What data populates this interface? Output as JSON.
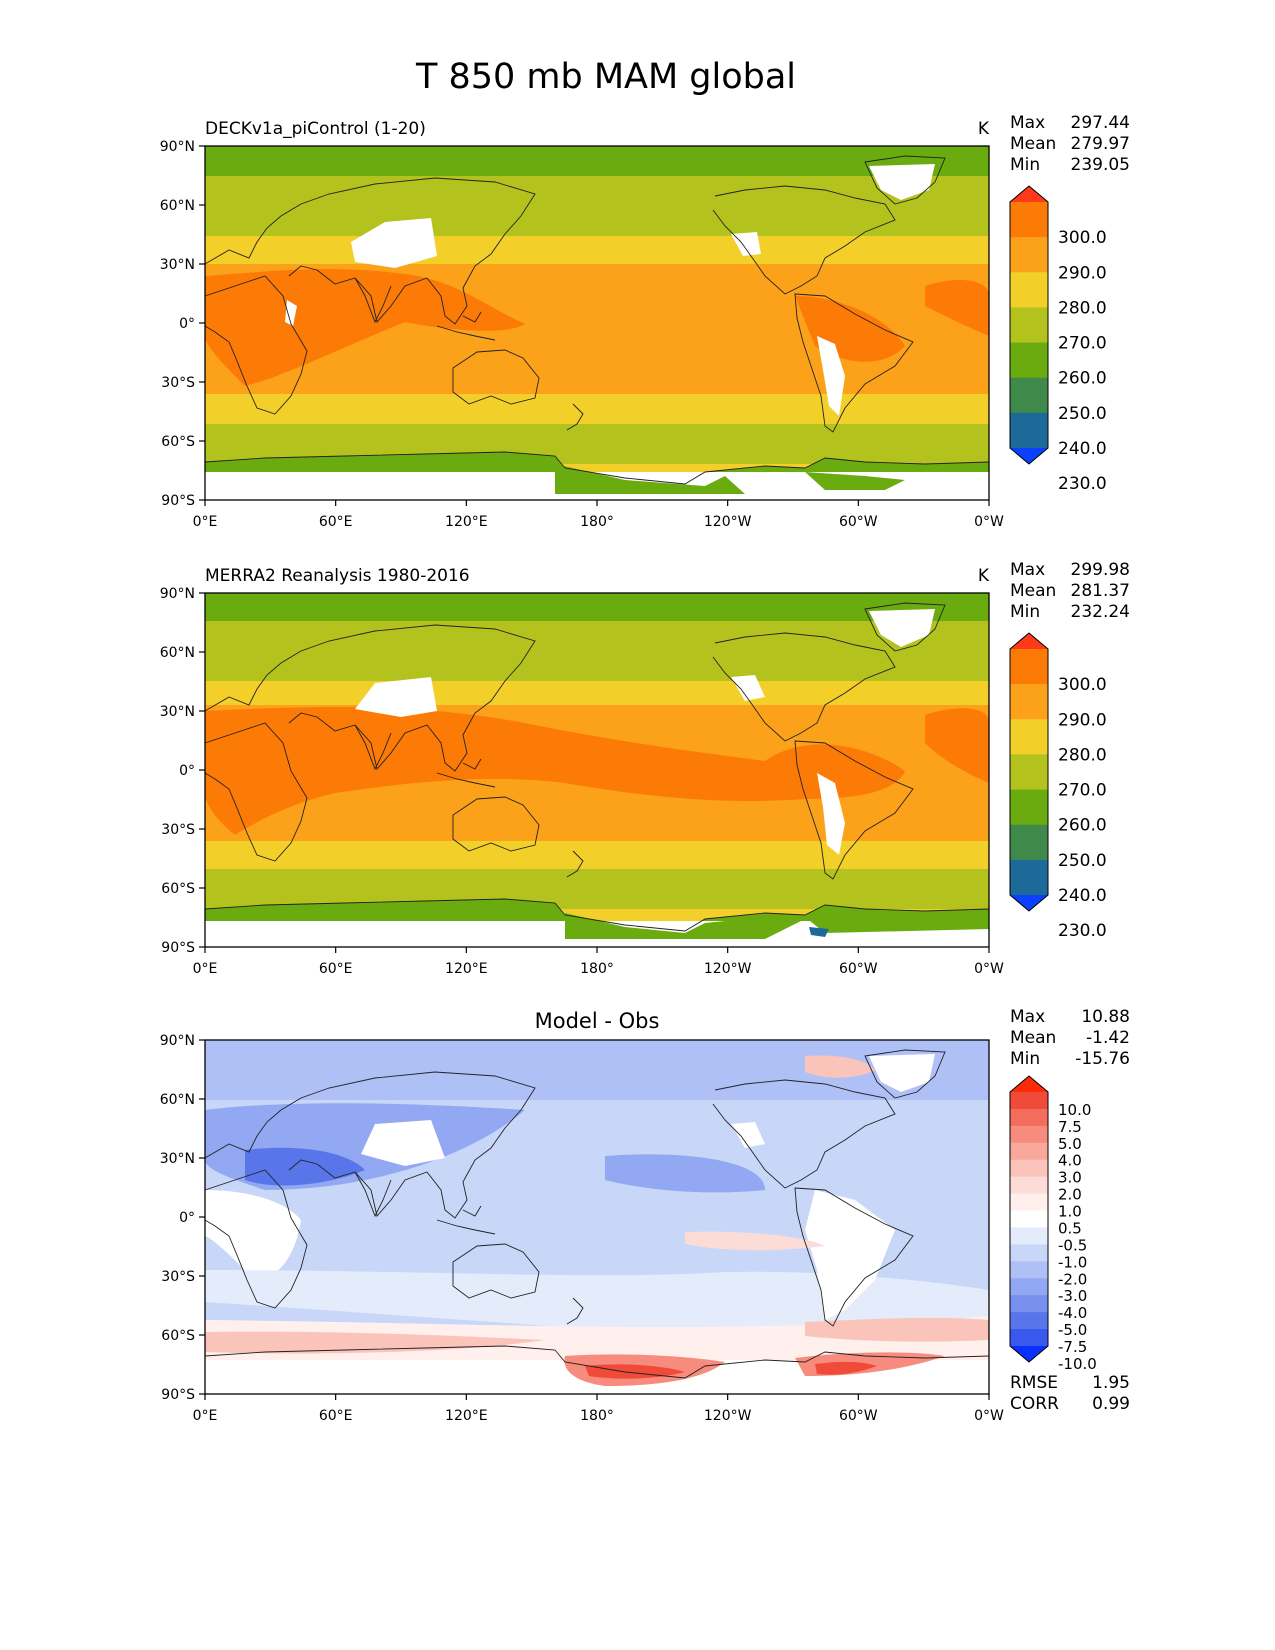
{
  "figure": {
    "title": "T 850 mb MAM global"
  },
  "axes": {
    "lat_ticks": [
      "90°N",
      "60°N",
      "30°N",
      "0°",
      "30°S",
      "60°S",
      "90°S"
    ],
    "lon_ticks": [
      "0°E",
      "60°E",
      "120°E",
      "180°",
      "120°W",
      "60°W",
      "0°W"
    ]
  },
  "panels": [
    {
      "id": "model",
      "left_title": "DECKv1a_piControl (1-20)",
      "center_title": "",
      "units": "K",
      "stats": [
        {
          "label": "Max",
          "value": "297.44"
        },
        {
          "label": "Mean",
          "value": "279.97"
        },
        {
          "label": "Min",
          "value": "239.05"
        }
      ],
      "colorbar": {
        "labels": [
          "300.0",
          "290.0",
          "280.0",
          "270.0",
          "260.0",
          "250.0",
          "240.0",
          "230.0"
        ],
        "colors": [
          "#ff3a1a",
          "#fc7a06",
          "#fba21a",
          "#f3cf2a",
          "#b4c21e",
          "#6aab10",
          "#3f8a4a",
          "#1b6a9a",
          "#0a40ff"
        ]
      },
      "metrics": []
    },
    {
      "id": "obs",
      "left_title": "MERRA2 Reanalysis 1980-2016",
      "center_title": "",
      "units": "K",
      "stats": [
        {
          "label": "Max",
          "value": "299.98"
        },
        {
          "label": "Mean",
          "value": "281.37"
        },
        {
          "label": "Min",
          "value": "232.24"
        }
      ],
      "colorbar": {
        "labels": [
          "300.0",
          "290.0",
          "280.0",
          "270.0",
          "260.0",
          "250.0",
          "240.0",
          "230.0"
        ],
        "colors": [
          "#ff3a1a",
          "#fc7a06",
          "#fba21a",
          "#f3cf2a",
          "#b4c21e",
          "#6aab10",
          "#3f8a4a",
          "#1b6a9a",
          "#0a40ff"
        ]
      },
      "metrics": []
    },
    {
      "id": "diff",
      "left_title": "",
      "center_title": "Model - Obs",
      "units": "",
      "stats": [
        {
          "label": "Max",
          "value": "10.88"
        },
        {
          "label": "Mean",
          "value": "-1.42"
        },
        {
          "label": "Min",
          "value": "-15.76"
        }
      ],
      "colorbar": {
        "labels": [
          "10.0",
          "7.5",
          "5.0",
          "4.0",
          "3.0",
          "2.0",
          "1.0",
          "0.5",
          "-0.5",
          "-1.0",
          "-2.0",
          "-3.0",
          "-4.0",
          "-5.0",
          "-7.5",
          "-10.0"
        ],
        "colors": [
          "#ff2a0a",
          "#f04a38",
          "#f36c5c",
          "#f78c7e",
          "#f9a89c",
          "#fbc4ba",
          "#fcdcd6",
          "#fff0ee",
          "#ffffff",
          "#e4ebfb",
          "#c8d6f8",
          "#aec0f6",
          "#92a8f2",
          "#7890ee",
          "#5876ea",
          "#3a58ec",
          "#0a30ff"
        ]
      },
      "metrics": [
        {
          "label": "RMSE",
          "value": "1.95"
        },
        {
          "label": "CORR",
          "value": "0.99"
        }
      ]
    }
  ]
}
